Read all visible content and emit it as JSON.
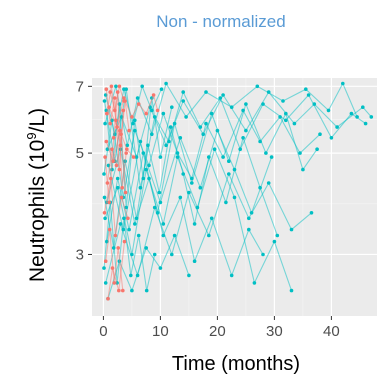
{
  "chart_data": {
    "type": "line",
    "title": "Non - normalized",
    "xlabel": "Time (months)",
    "ylabel": {
      "prefix": "Neutrophils (10",
      "superscript": "9",
      "suffix": "/L)"
    },
    "x_ticks": [
      0,
      10,
      20,
      30,
      40
    ],
    "y_ticks": [
      3,
      5,
      7
    ],
    "xlim": [
      -2,
      48
    ],
    "ylim": [
      2.2,
      7.3
    ],
    "y_scale": "log",
    "grid": true,
    "legend": "none",
    "colors": {
      "teal": "#00bfc4",
      "salmon": "#f8766d",
      "panel": "#ebebeb",
      "grid_major": "#ffffff",
      "grid_minor": "#f5f5f5"
    },
    "series": [
      {
        "color": "salmon",
        "points": [
          [
            0.5,
            6.9
          ],
          [
            1.2,
            5.8
          ],
          [
            2.0,
            6.6
          ],
          [
            2.8,
            4.6
          ],
          [
            3.5,
            6.2
          ]
        ]
      },
      {
        "color": "salmon",
        "points": [
          [
            0.3,
            4.9
          ],
          [
            1.0,
            3.9
          ],
          [
            1.8,
            5.4
          ],
          [
            2.5,
            6.8
          ],
          [
            3.3,
            4.2
          ],
          [
            4.0,
            5.0
          ]
        ]
      },
      {
        "color": "salmon",
        "points": [
          [
            0.6,
            6.1
          ],
          [
            1.4,
            7.0
          ],
          [
            2.2,
            5.9
          ],
          [
            3.0,
            5.2
          ],
          [
            3.8,
            6.5
          ],
          [
            4.5,
            5.6
          ]
        ]
      },
      {
        "color": "salmon",
        "points": [
          [
            0.4,
            2.9
          ],
          [
            1.1,
            3.4
          ],
          [
            1.9,
            2.6
          ],
          [
            2.6,
            3.1
          ],
          [
            3.4,
            2.5
          ]
        ]
      },
      {
        "color": "salmon",
        "points": [
          [
            0.7,
            4.3
          ],
          [
            1.5,
            5.1
          ],
          [
            2.3,
            4.7
          ],
          [
            3.1,
            5.5
          ],
          [
            3.9,
            4.1
          ]
        ]
      },
      {
        "color": "salmon",
        "points": [
          [
            1.0,
            6.3
          ],
          [
            2.4,
            5.7
          ],
          [
            3.6,
            6.6
          ],
          [
            5.0,
            6.0
          ],
          [
            6.2,
            6.4
          ],
          [
            7.5,
            6.1
          ],
          [
            8.8,
            6.7
          ],
          [
            9.5,
            6.2
          ]
        ]
      },
      {
        "color": "salmon",
        "points": [
          [
            0.2,
            3.7
          ],
          [
            1.3,
            4.4
          ],
          [
            2.1,
            3.3
          ],
          [
            3.2,
            4.0
          ],
          [
            4.3,
            3.6
          ]
        ]
      },
      {
        "color": "salmon",
        "points": [
          [
            0.8,
            2.4
          ],
          [
            1.6,
            2.8
          ],
          [
            2.7,
            2.5
          ],
          [
            3.7,
            3.2
          ]
        ]
      },
      {
        "color": "salmon",
        "points": [
          [
            0.5,
            5.3
          ],
          [
            1.7,
            4.8
          ],
          [
            2.9,
            5.6
          ],
          [
            4.1,
            5.1
          ],
          [
            5.3,
            4.9
          ]
        ]
      },
      {
        "color": "salmon",
        "points": [
          [
            1.2,
            6.8
          ],
          [
            2.0,
            6.2
          ],
          [
            2.8,
            7.0
          ],
          [
            3.6,
            6.5
          ]
        ]
      },
      {
        "color": "teal",
        "points": [
          [
            0.2,
            6.5
          ],
          [
            2.0,
            4.8
          ],
          [
            4.0,
            6.9
          ],
          [
            6.5,
            4.2
          ],
          [
            9.0,
            6.0
          ],
          [
            11.5,
            5.3
          ],
          [
            14.0,
            6.8
          ],
          [
            17.0,
            5.7
          ],
          [
            20.5,
            6.6
          ],
          [
            24.0,
            5.1
          ],
          [
            28.0,
            6.4
          ],
          [
            32.0,
            5.9
          ],
          [
            36.0,
            6.7
          ],
          [
            40.0,
            5.4
          ],
          [
            43.5,
            6.1
          ],
          [
            46.0,
            5.8
          ]
        ]
      },
      {
        "color": "teal",
        "points": [
          [
            0.4,
            2.6
          ],
          [
            3.0,
            3.5
          ],
          [
            6.0,
            2.7
          ],
          [
            9.0,
            3.8
          ],
          [
            12.0,
            3.0
          ],
          [
            15.0,
            4.1
          ],
          [
            18.5,
            3.3
          ],
          [
            22.0,
            4.5
          ],
          [
            25.5,
            3.6
          ],
          [
            29.0,
            4.3
          ],
          [
            33.0,
            3.4
          ],
          [
            36.5,
            3.7
          ]
        ]
      },
      {
        "color": "teal",
        "points": [
          [
            0.1,
            4.5
          ],
          [
            1.5,
            5.9
          ],
          [
            3.5,
            4.0
          ],
          [
            5.5,
            5.6
          ],
          [
            8.0,
            4.7
          ],
          [
            10.5,
            6.1
          ],
          [
            13.0,
            5.0
          ],
          [
            15.5,
            4.4
          ],
          [
            18.0,
            5.8
          ],
          [
            21.0,
            4.9
          ],
          [
            24.5,
            6.2
          ],
          [
            27.5,
            5.3
          ],
          [
            31.0,
            6.0
          ],
          [
            34.5,
            5.0
          ],
          [
            38.0,
            5.5
          ]
        ]
      },
      {
        "color": "teal",
        "points": [
          [
            0.6,
            3.2
          ],
          [
            2.5,
            4.4
          ],
          [
            4.5,
            3.4
          ],
          [
            7.0,
            5.0
          ],
          [
            10.0,
            3.9
          ],
          [
            13.5,
            5.4
          ],
          [
            17.0,
            4.2
          ],
          [
            20.0,
            5.6
          ],
          [
            23.0,
            4.6
          ],
          [
            26.0,
            3.7
          ],
          [
            29.5,
            4.9
          ]
        ]
      },
      {
        "color": "teal",
        "points": [
          [
            0.3,
            5.8
          ],
          [
            2.2,
            7.0
          ],
          [
            4.2,
            5.2
          ],
          [
            6.0,
            6.6
          ],
          [
            8.5,
            5.5
          ],
          [
            11.0,
            7.1
          ],
          [
            14.5,
            6.0
          ],
          [
            18.0,
            6.8
          ],
          [
            22.5,
            6.3
          ],
          [
            27.0,
            7.0
          ],
          [
            31.5,
            6.5
          ],
          [
            35.5,
            6.9
          ],
          [
            39.5,
            6.2
          ],
          [
            42.0,
            7.1
          ],
          [
            44.5,
            6.0
          ]
        ]
      },
      {
        "color": "teal",
        "points": [
          [
            0.8,
            2.4
          ],
          [
            2.8,
            2.9
          ],
          [
            5.0,
            2.5
          ],
          [
            7.5,
            3.1
          ],
          [
            10.0,
            2.8
          ],
          [
            12.5,
            3.3
          ],
          [
            15.0,
            2.7
          ]
        ]
      },
      {
        "color": "teal",
        "points": [
          [
            0.2,
            4.0
          ],
          [
            1.8,
            3.1
          ],
          [
            3.8,
            4.8
          ],
          [
            5.8,
            3.6
          ],
          [
            7.8,
            5.2
          ],
          [
            9.8,
            4.1
          ],
          [
            11.8,
            5.7
          ],
          [
            14.0,
            4.5
          ],
          [
            16.0,
            3.5
          ],
          [
            18.5,
            4.9
          ],
          [
            21.5,
            3.9
          ],
          [
            24.5,
            5.4
          ],
          [
            27.5,
            4.2
          ],
          [
            30.5,
            3.3
          ]
        ]
      },
      {
        "color": "teal",
        "points": [
          [
            0.5,
            6.2
          ],
          [
            1.5,
            4.6
          ],
          [
            2.8,
            6.4
          ],
          [
            4.0,
            3.8
          ],
          [
            5.5,
            5.9
          ],
          [
            7.0,
            4.4
          ],
          [
            8.5,
            6.6
          ],
          [
            10.0,
            4.9
          ],
          [
            12.0,
            6.3
          ]
        ]
      },
      {
        "color": "teal",
        "points": [
          [
            0.3,
            3.6
          ],
          [
            2.5,
            4.2
          ],
          [
            5.0,
            3.0
          ],
          [
            7.5,
            4.6
          ],
          [
            10.5,
            3.5
          ],
          [
            13.0,
            4.9
          ],
          [
            16.5,
            3.8
          ],
          [
            19.5,
            5.1
          ],
          [
            23.0,
            4.0
          ],
          [
            26.5,
            2.6
          ],
          [
            30.0,
            3.2
          ],
          [
            33.0,
            2.5
          ]
        ]
      },
      {
        "color": "teal",
        "points": [
          [
            0.7,
            5.1
          ],
          [
            3.2,
            6.0
          ],
          [
            5.8,
            4.9
          ],
          [
            8.2,
            6.3
          ],
          [
            11.0,
            5.2
          ],
          [
            14.0,
            6.5
          ],
          [
            17.5,
            5.5
          ],
          [
            21.0,
            6.7
          ],
          [
            25.0,
            5.6
          ],
          [
            29.0,
            6.8
          ],
          [
            33.5,
            5.8
          ],
          [
            37.0,
            6.4
          ],
          [
            41.0,
            5.7
          ],
          [
            45.5,
            6.3
          ],
          [
            47.0,
            6.0
          ]
        ]
      },
      {
        "color": "teal",
        "points": [
          [
            0.1,
            2.8
          ],
          [
            1.2,
            3.9
          ],
          [
            2.4,
            2.6
          ],
          [
            3.6,
            3.6
          ],
          [
            4.8,
            2.7
          ],
          [
            6.2,
            3.3
          ],
          [
            7.6,
            2.5
          ],
          [
            9.0,
            3.0
          ]
        ]
      },
      {
        "color": "teal",
        "points": [
          [
            0.9,
            4.7
          ],
          [
            3.5,
            3.4
          ],
          [
            6.5,
            5.3
          ],
          [
            9.5,
            3.7
          ],
          [
            12.5,
            5.8
          ],
          [
            15.5,
            4.3
          ],
          [
            19.0,
            6.1
          ],
          [
            22.0,
            4.8
          ],
          [
            25.0,
            6.4
          ],
          [
            28.5,
            5.0
          ],
          [
            32.0,
            6.1
          ],
          [
            35.0,
            4.6
          ],
          [
            37.5,
            5.1
          ]
        ]
      },
      {
        "color": "teal",
        "points": [
          [
            0.4,
            6.7
          ],
          [
            2.0,
            5.5
          ],
          [
            3.6,
            6.9
          ],
          [
            5.2,
            5.8
          ],
          [
            6.8,
            7.0
          ],
          [
            8.5,
            6.2
          ],
          [
            10.2,
            6.9
          ]
        ]
      },
      {
        "color": "teal",
        "points": [
          [
            0.6,
            3.9
          ],
          [
            3.0,
            5.1
          ],
          [
            5.5,
            3.5
          ],
          [
            8.0,
            4.4
          ],
          [
            10.5,
            3.3
          ],
          [
            13.5,
            4.0
          ],
          [
            16.0,
            2.9
          ],
          [
            19.0,
            3.6
          ],
          [
            22.5,
            2.7
          ],
          [
            25.5,
            3.4
          ],
          [
            28.0,
            3.0
          ]
        ]
      }
    ]
  }
}
